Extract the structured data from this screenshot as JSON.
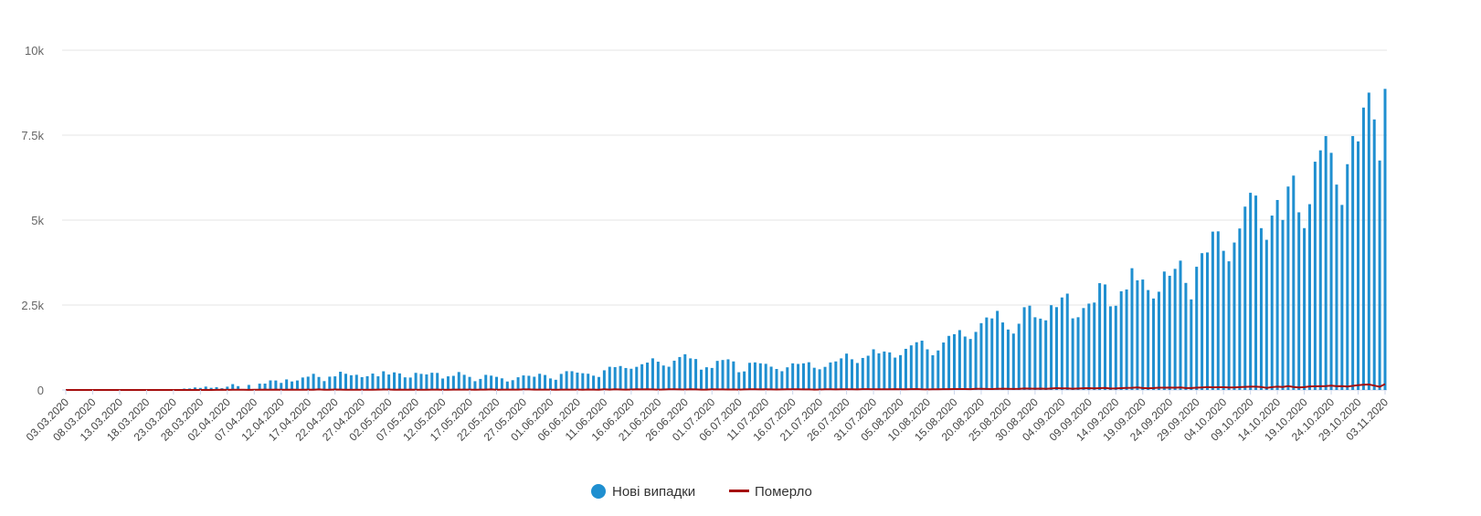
{
  "chart_data": {
    "type": "bar",
    "title": "",
    "xlabel": "",
    "ylabel": "",
    "ylim": [
      0,
      10000
    ],
    "y_ticks": [
      "0",
      "2.5k",
      "5k",
      "7.5k",
      "10k"
    ],
    "y_tick_values": [
      0,
      2500,
      5000,
      7500,
      10000
    ],
    "start_date": "03.03.2020",
    "end_date": "03.11.2020",
    "x_tick_every_days": 5,
    "x_tick_labels": [
      "03.03.2020",
      "08.03.2020",
      "13.03.2020",
      "18.03.2020",
      "23.03.2020",
      "28.03.2020",
      "02.04.2020",
      "07.04.2020",
      "12.04.2020",
      "17.04.2020",
      "22.04.2020",
      "27.04.2020",
      "02.05.2020",
      "07.05.2020",
      "12.05.2020",
      "17.05.2020",
      "22.05.2020",
      "27.05.2020",
      "01.06.2020",
      "06.06.2020",
      "11.06.2020",
      "16.06.2020",
      "21.06.2020",
      "26.06.2020",
      "01.07.2020",
      "06.07.2020",
      "11.07.2020",
      "16.07.2020",
      "21.07.2020",
      "26.07.2020",
      "31.07.2020",
      "05.08.2020",
      "10.08.2020",
      "15.08.2020",
      "20.08.2020",
      "25.08.2020",
      "30.08.2020",
      "04.09.2020",
      "09.09.2020",
      "14.09.2020",
      "19.09.2020",
      "24.09.2020",
      "29.09.2020",
      "04.10.2020",
      "09.10.2020",
      "14.10.2020",
      "19.10.2020",
      "24.10.2020",
      "29.10.2020",
      "03.11.2020"
    ],
    "grid": true,
    "legend_position": "bottom-center",
    "series": [
      {
        "name": "Нові випадки",
        "type": "bar",
        "color": "#1f8fd0",
        "values": [
          1,
          0,
          0,
          0,
          0,
          0,
          0,
          0,
          1,
          0,
          0,
          0,
          0,
          2,
          4,
          9,
          5,
          12,
          16,
          26,
          11,
          14,
          40,
          43,
          74,
          60,
          100,
          63,
          83,
          51,
          97,
          172,
          113,
          0,
          149,
          0,
          186,
          188,
          282,
          279,
          208,
          311,
          250,
          280,
          367,
          392,
          476,
          383,
          261,
          392,
          401,
          537,
          477,
          433,
          447,
          377,
          405,
          483,
          402,
          550,
          455,
          518,
          487,
          372,
          366,
          504,
          474,
          458,
          507,
          502,
          337,
          401,
          416,
          528,
          446,
          385,
          258,
          325,
          445,
          422,
          386,
          342,
          249,
          288,
          374,
          428,
          418,
          390,
          477,
          441,
          339,
          300,
          473,
          553,
          552,
          511,
          493,
          478,
          421,
          383,
          579,
          683,
          673,
          705,
          647,
          625,
          681,
          758,
          806,
          931,
          832,
          720,
          684,
          862,
          970,
          1052,
          930,
          911,
          598,
          669,
          648,
          856,
          882,
          902,
          840,
          522,
          546,
          799,
          812,
          785,
          770,
          686,
          618,
          552,
          667,
          784,
          767,
          784,
          816,
          654,
          609,
          680,
          810,
          840,
          930,
          1070,
          903,
          794,
          942,
          1008,
          1197,
          1079,
          1132,
          1106,
          953,
          1026,
          1211,
          1313,
          1405,
          1451,
          1196,
          1022,
          1163,
          1397,
          1592,
          1642,
          1762,
          1573,
          1501,
          1709,
          1967,
          2134,
          2106,
          2328,
          1987,
          1779,
          1660,
          1950,
          2436,
          2481,
          2140,
          2100,
          2050,
          2495,
          2438,
          2723,
          2836,
          2108,
          2141,
          2411,
          2542,
          2573,
          3144,
          3106,
          2462,
          2479,
          2905,
          2958,
          3584,
          3228,
          3250,
          2941,
          2692,
          2892,
          3486,
          3361,
          3565,
          3807,
          3151,
          2666,
          3627,
          4027,
          4048,
          4661,
          4669,
          4096,
          3787,
          4340,
          4753,
          5397,
          5804,
          5722,
          4763,
          4420,
          5133,
          5592,
          5005,
          5988,
          6310,
          5229,
          4764,
          5469,
          6719,
          7053,
          7474,
          6980,
          6045,
          5447,
          6646,
          7474,
          7317,
          8312,
          8752,
          7963,
          6754,
          8863
        ]
      },
      {
        "name": "Померло",
        "type": "line",
        "color": "#a50f0f",
        "values": [
          0,
          0,
          0,
          0,
          0,
          0,
          0,
          0,
          0,
          0,
          0,
          0,
          0,
          0,
          0,
          0,
          0,
          1,
          0,
          0,
          0,
          0,
          1,
          0,
          2,
          1,
          3,
          1,
          4,
          5,
          4,
          5,
          5,
          7,
          3,
          5,
          7,
          12,
          5,
          10,
          7,
          8,
          12,
          7,
          9,
          11,
          7,
          17,
          7,
          7,
          14,
          10,
          6,
          9,
          8,
          9,
          6,
          8,
          11,
          14,
          13,
          7,
          12,
          8,
          11,
          8,
          7,
          9,
          12,
          10,
          6,
          7,
          12,
          10,
          12,
          10,
          7,
          10,
          11,
          16,
          8,
          10,
          12,
          10,
          12,
          15,
          17,
          10,
          11,
          12,
          10,
          9,
          11,
          12,
          10,
          12,
          9,
          13,
          11,
          8,
          19,
          10,
          20,
          14,
          11,
          13,
          18,
          15,
          21,
          15,
          12,
          13,
          18,
          19,
          15,
          14,
          22,
          16,
          11,
          12,
          19,
          16,
          17,
          14,
          15,
          11,
          15,
          19,
          18,
          16,
          19,
          17,
          13,
          15,
          19,
          21,
          19,
          17,
          15,
          11,
          14,
          18,
          20,
          17,
          22,
          19,
          20,
          17,
          24,
          23,
          22,
          22,
          20,
          22,
          24,
          19,
          21,
          24,
          27,
          20,
          16,
          22,
          21,
          24,
          23,
          27,
          28,
          27,
          23,
          31,
          32,
          30,
          28,
          34,
          38,
          33,
          30,
          33,
          43,
          41,
          38,
          40,
          34,
          42,
          55,
          49,
          45,
          37,
          42,
          51,
          53,
          47,
          54,
          60,
          42,
          45,
          53,
          59,
          64,
          74,
          57,
          52,
          56,
          66,
          66,
          70,
          68,
          74,
          57,
          56,
          66,
          76,
          82,
          78,
          81,
          80,
          72,
          74,
          83,
          91,
          98,
          96,
          89,
          63,
          84,
          96,
          88,
          112,
          90,
          72,
          82,
          104,
          108,
          109,
          116,
          126,
          109,
          115,
          101,
          121,
          139,
          155,
          162,
          130,
          93,
          176
        ]
      }
    ]
  }
}
